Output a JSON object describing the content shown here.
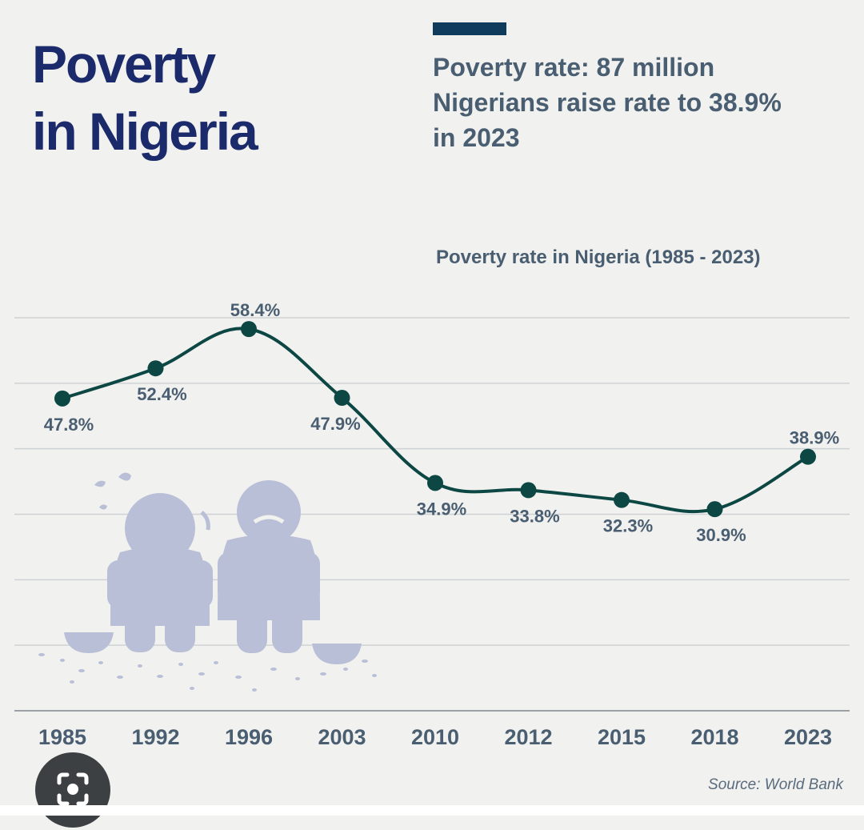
{
  "title": {
    "line1": "Poverty",
    "line2": "in Nigeria"
  },
  "subtitle": {
    "line1": "Poverty rate: 87 million",
    "line2": "Nigerians raise rate to 38.9%",
    "line3": "in 2023"
  },
  "source": "Source: World Bank",
  "icons": {
    "illustration": "sad-people-illustration",
    "lens": "camera-lens-icon"
  },
  "colors": {
    "title": "#1b2a6b",
    "text": "#4a5e72",
    "line": "#0d4744",
    "grid": "#cfd2d4",
    "illustration": "#b9bfd6",
    "accent": "#0f3b5c"
  },
  "chart_data": {
    "type": "line",
    "title": "Poverty rate in Nigeria (1985 - 2023)",
    "categories": [
      "1985",
      "1992",
      "1996",
      "2003",
      "2010",
      "2012",
      "2015",
      "2018",
      "2023"
    ],
    "values": [
      47.8,
      52.4,
      58.4,
      47.9,
      34.9,
      33.8,
      32.3,
      30.9,
      38.9
    ],
    "labels": [
      "47.8%",
      "52.4%",
      "58.4%",
      "47.9%",
      "34.9%",
      "33.8%",
      "32.3%",
      "30.9%",
      "38.9%"
    ],
    "ylim": [
      0,
      60
    ],
    "grid": true,
    "legend": "none"
  }
}
